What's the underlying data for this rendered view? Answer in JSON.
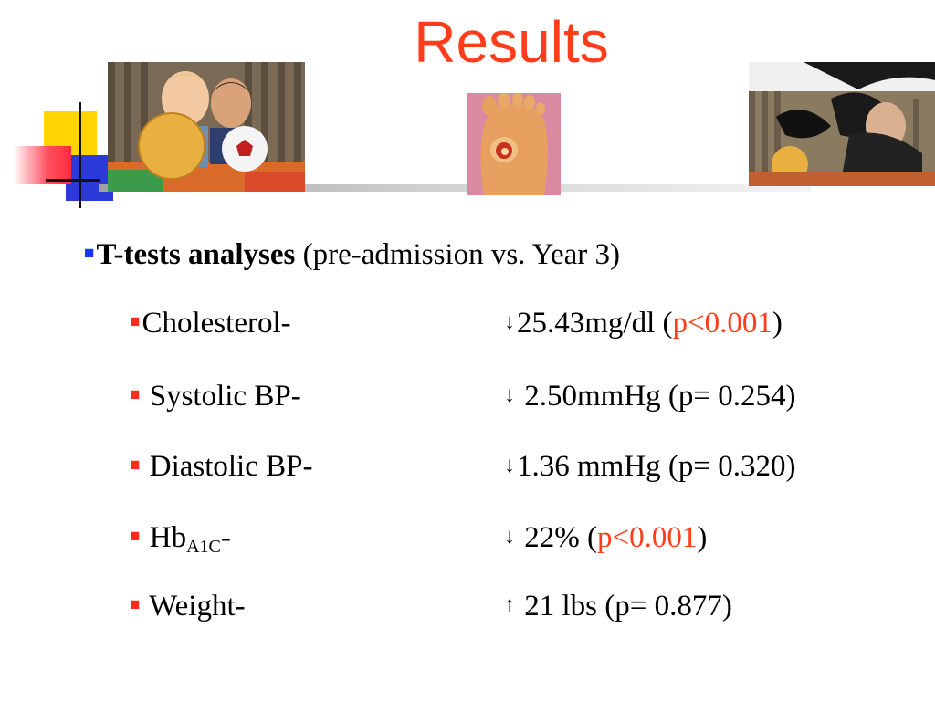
{
  "title": "Results",
  "heading": {
    "bold": "T-tests analyses",
    "rest": " (pre-admission vs. Year 3)"
  },
  "items": [
    {
      "label": "Cholesterol-",
      "arrow": "↓",
      "value": "25.43mg/dl (",
      "p": "p<0.001",
      "p_red": true,
      "close": ")"
    },
    {
      "label": "Systolic BP-",
      "arrow": "↓",
      "value": "2.50mmHg (p= 0.254)",
      "p": "",
      "close": ""
    },
    {
      "label": "Diastolic BP-",
      "arrow": "↓",
      "value": "1.36 mmHg (p= 0.320)",
      "p": "",
      "close": ""
    },
    {
      "label_main": "Hb",
      "label_sub": "A1C",
      "label_dash": "-",
      "arrow": "↓",
      "value": "22% (",
      "p": "p<0.001",
      "p_red": true,
      "close": ")"
    },
    {
      "label": "Weight-",
      "arrow": "↑",
      "value": "21 lbs (p= 0.877)",
      "p": "",
      "close": ""
    }
  ],
  "images": {
    "left": "children-with-balls-photo",
    "center": "foot-ulcer-photo",
    "right": "children-playing-photo"
  },
  "colors": {
    "title": "#ff3d1a",
    "bullet_blue": "#1a33ff",
    "bullet_red": "#ff2a1a",
    "highlight": "#ff3d1a"
  }
}
